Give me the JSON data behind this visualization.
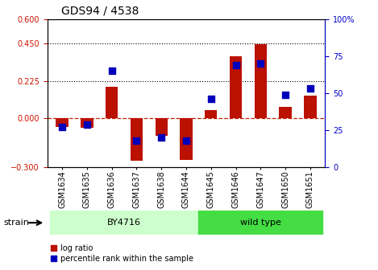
{
  "title": "GDS94 / 4538",
  "samples": [
    "GSM1634",
    "GSM1635",
    "GSM1636",
    "GSM1637",
    "GSM1638",
    "GSM1644",
    "GSM1645",
    "GSM1646",
    "GSM1647",
    "GSM1650",
    "GSM1651"
  ],
  "log_ratio": [
    -0.055,
    -0.06,
    0.19,
    -0.26,
    -0.11,
    -0.255,
    0.045,
    0.375,
    0.445,
    0.065,
    0.135
  ],
  "percentile_rank": [
    27,
    29,
    65,
    18,
    20,
    18,
    46,
    69,
    70,
    49,
    53
  ],
  "ylim_left": [
    -0.3,
    0.6
  ],
  "ylim_right": [
    0,
    100
  ],
  "yticks_left": [
    -0.3,
    0,
    0.225,
    0.45,
    0.6
  ],
  "yticks_right": [
    0,
    25,
    50,
    75,
    100
  ],
  "hlines": [
    0.45,
    0.225
  ],
  "bar_color": "#bb1100",
  "dot_color": "#0000bb",
  "zero_line_color": "#bb2200",
  "plot_bg": "#ffffff",
  "group1_color": "#ccffcc",
  "group2_color": "#44dd44",
  "group1_label": "BY4716",
  "group2_label": "wild type",
  "group1_samples": 6,
  "group2_samples": 5,
  "strain_label": "strain",
  "legend_items": [
    {
      "label": "log ratio",
      "color": "#bb1100"
    },
    {
      "label": "percentile rank within the sample",
      "color": "#0000bb"
    }
  ],
  "tick_color_left": "#cc1100",
  "tick_color_right": "#0000cc",
  "bar_width": 0.5,
  "dot_size": 40,
  "title_fontsize": 10,
  "axis_fontsize": 7,
  "legend_fontsize": 7
}
